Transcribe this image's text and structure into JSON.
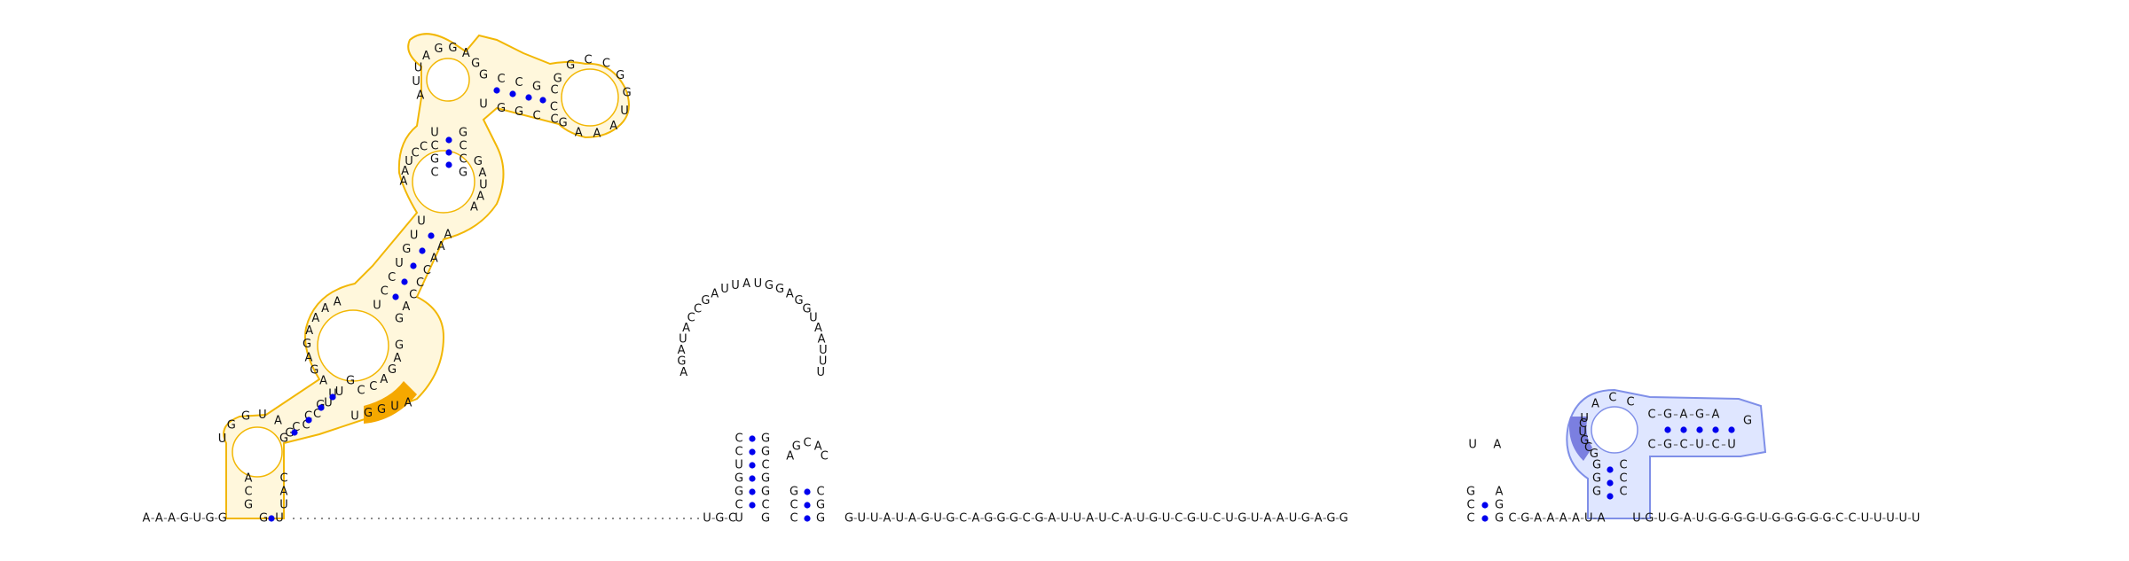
{
  "colors": {
    "background": "#ffffff",
    "base_text": "#111111",
    "backbone": "#555555",
    "pair_dot": "#0000ee",
    "orange_outline": "#f2b705",
    "orange_fill": "#fff7dc",
    "orange_accent": "#f5a800",
    "blue_outline": "#7f8fe8",
    "blue_fill": "#dfe6ff",
    "blue_accent": "#7b7fe0"
  },
  "sequence": {
    "five_prime": "AAAGUGG",
    "three_prime_tail": "UGUGAUGGGGUGGGGGCCUUUUU"
  },
  "domains": [
    {
      "name": "orange-domain",
      "stem1": {
        "left": "GCAUGG",
        "right": "UACGACUU"
      },
      "stem2": {
        "left": "GUCUU",
        "right": "AAACCCG"
      },
      "loop": "UGGUAGAGAAAA",
      "top_stem": {
        "left": "CCCUAAUUAGGAGAGG",
        "right": "UGGCCAAGGCCGCGGC"
      }
    },
    {
      "name": "hairpin-1",
      "stem": {
        "left": "UCGGUCC",
        "right": "CACGGGGA"
      },
      "loop": "AGAUACCGAUUAUGGAGGUAAUUU"
    },
    {
      "name": "hairpin-2",
      "stem": {
        "left": "CCG",
        "right": "GGC"
      },
      "loop": "AGCAC"
    },
    {
      "name": "hairpin-3",
      "stem": {
        "left": "GCC",
        "right": "AGG"
      },
      "loop": "UA"
    },
    {
      "name": "blue-domain",
      "stem_vertical": {
        "left": "GGG",
        "right": "CCC"
      },
      "stem_horizontal": {
        "top": "CGAGA",
        "bottom": "CGCUCU"
      },
      "loop": "UACCGCGUC"
    }
  ],
  "linker": {
    "between_orange_and_hairpin1": "UGC",
    "between_hairpin2_and_hairpin3": "GUUAUAGUGCAGGGCGAUUAUCAUGUCGUCUGUAAUGAGG",
    "between_hairpin3_and_blue": "CGAAAAUA"
  },
  "annotations": {
    "dashed_gap_label": ""
  }
}
